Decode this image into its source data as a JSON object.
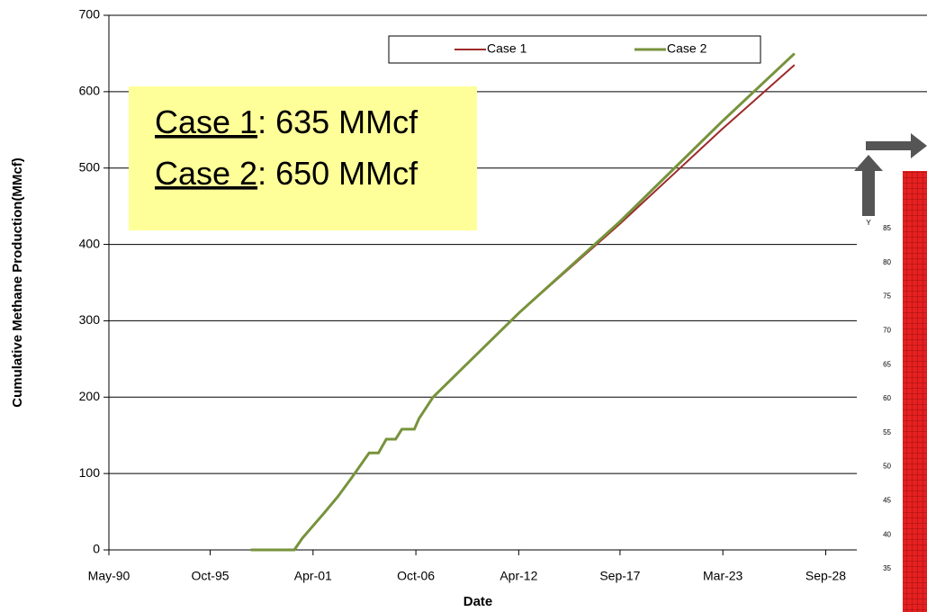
{
  "chart_data": {
    "type": "line",
    "x_label": "Date",
    "y_label": "Cumulative Methane Production(MMcf)",
    "xlim": [
      "1990-05",
      "2034-02"
    ],
    "xticks": [
      {
        "value": "1990-05",
        "label": "May-90"
      },
      {
        "value": "1995-10",
        "label": "Oct-95"
      },
      {
        "value": "2001-04",
        "label": "Apr-01"
      },
      {
        "value": "2006-10",
        "label": "Oct-06"
      },
      {
        "value": "2012-04",
        "label": "Apr-12"
      },
      {
        "value": "2017-09",
        "label": "Sep-17"
      },
      {
        "value": "2023-03",
        "label": "Mar-23"
      },
      {
        "value": "2028-09",
        "label": "Sep-28"
      }
    ],
    "ylim": [
      0,
      700
    ],
    "yticks": [
      0,
      100,
      200,
      300,
      400,
      500,
      600,
      700
    ],
    "grid": true,
    "legend": "top",
    "x": [
      "1997-12",
      "2000-04",
      "2000-09",
      "2001-11",
      "2002-08",
      "2003-05",
      "2004-04",
      "2004-10",
      "2005-03",
      "2005-09",
      "2006-01",
      "2006-09",
      "2006-12",
      "2007-09",
      "2012-04",
      "2017-09",
      "2023-02",
      "2027-01"
    ],
    "series": [
      {
        "name": "Case 1",
        "color": "#9e2a2b",
        "values": [
          0,
          0,
          15,
          48,
          70,
          95,
          127,
          127,
          145,
          145,
          158,
          158,
          172,
          200,
          310,
          427,
          550,
          635
        ]
      },
      {
        "name": "Case 2",
        "color": "#77933c",
        "values": [
          0,
          0,
          15,
          48,
          70,
          95,
          127,
          127,
          145,
          145,
          158,
          158,
          172,
          200,
          310,
          430,
          560,
          650
        ]
      }
    ],
    "annotations": [
      {
        "label": "Case 1",
        "text": ": 635 MMcf"
      },
      {
        "label": "Case 2",
        "text": ": 650 MMcf"
      }
    ],
    "inset": {
      "axis": "Y",
      "labels": [
        "85",
        "80",
        "75",
        "70",
        "65",
        "60",
        "55",
        "50",
        "45",
        "40",
        "35"
      ]
    }
  }
}
